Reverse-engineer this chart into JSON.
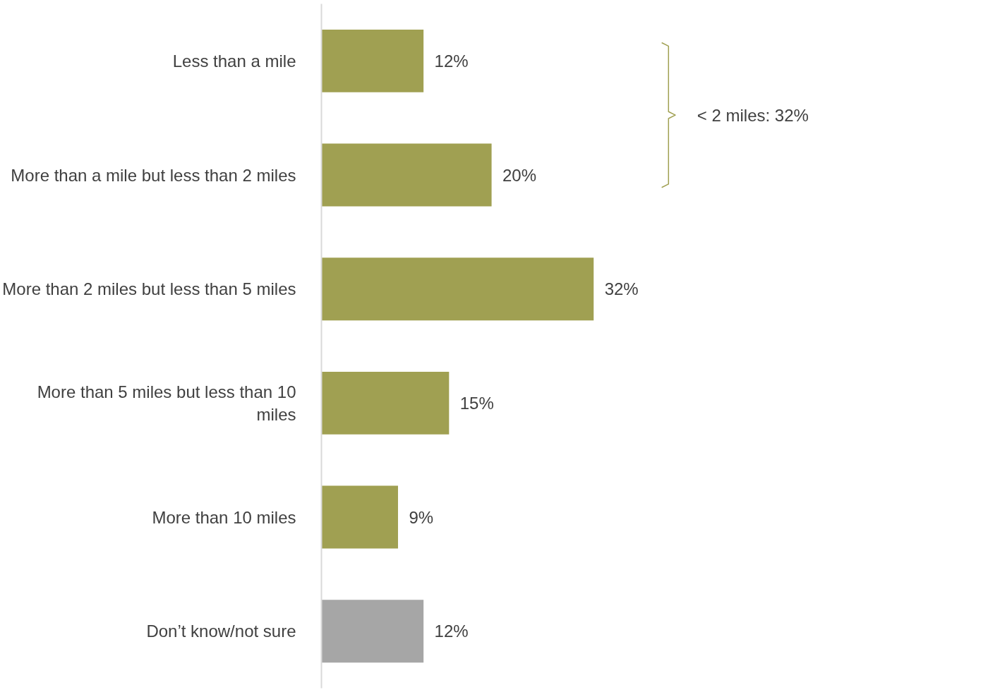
{
  "chart_data": {
    "type": "bar",
    "orientation": "horizontal",
    "categories": [
      "Less than a mile",
      "More than a mile but less than 2 miles",
      "More than 2 miles but less than 5 miles",
      "More than 5 miles but less than 10 miles",
      "More than 10 miles",
      "Don’t know/not sure"
    ],
    "values": [
      12,
      20,
      32,
      15,
      9,
      12
    ],
    "colors": [
      "#a0a052",
      "#a0a052",
      "#a0a052",
      "#a0a052",
      "#a0a052",
      "#a6a6a6"
    ],
    "value_labels": [
      "12%",
      "20%",
      "32%",
      "15%",
      "9%",
      "12%"
    ],
    "annotations": [
      "< 2 miles: 32%"
    ]
  }
}
